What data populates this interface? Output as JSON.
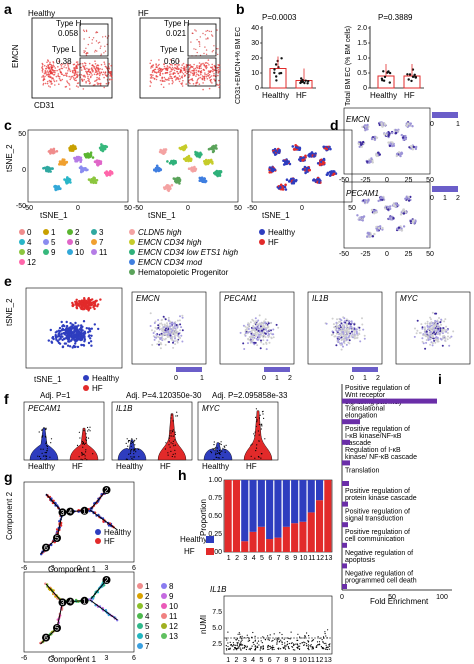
{
  "panels": {
    "a": {
      "label": "a",
      "plots": [
        {
          "title": "Healthy",
          "gates": [
            "Type H",
            "0.058",
            "Type L",
            "0.38"
          ]
        },
        {
          "title": "HF",
          "gates": [
            "Type H",
            "0.021",
            "Type L",
            "0.60"
          ]
        }
      ],
      "ylabel": "EMCN",
      "xlabel": "CD31"
    },
    "b": {
      "label": "b",
      "left": {
        "pval": "P=0.0003",
        "ylabel": "CD31+EMCN+% BM EC",
        "yticks": [
          "0",
          "10",
          "20",
          "30",
          "40"
        ],
        "categories": [
          "Healthy",
          "HF"
        ],
        "values": [
          13,
          5
        ]
      },
      "right": {
        "pval": "P=0.3889",
        "ylabel": "Total BM EC (% BM cells)",
        "yticks": [
          "0",
          "0.5",
          "1.0",
          "1.5",
          "2.0"
        ],
        "categories": [
          "Healthy",
          "HF"
        ],
        "values": [
          0.4,
          0.4
        ]
      }
    },
    "c": {
      "label": "c",
      "ylabel": "tSNE_2",
      "xlabel": "tSNE_1",
      "xticks": [
        "-50",
        "0",
        "50"
      ],
      "yticks": [
        "50",
        "0",
        "-50"
      ],
      "clusters": [
        "0",
        "1",
        "2",
        "3",
        "4",
        "5",
        "6",
        "7",
        "8",
        "9",
        "10",
        "11",
        "12"
      ],
      "cluster_colors": [
        "#f08c8c",
        "#c8a000",
        "#5bb531",
        "#2fa8a0",
        "#29b6c8",
        "#8a8cf0",
        "#e066c8",
        "#f0a030",
        "#8cc63f",
        "#37b87c",
        "#33a8d8",
        "#b57ce6",
        "#ff66aa"
      ],
      "celltypes": [
        "CLDN5 high",
        "EMCN CD34 high",
        "EMCN CD34 low ETS1 high",
        "EMCN CD34 mod",
        "Hematopoietic Progenitor"
      ],
      "celltype_colors": [
        "#f4a3a3",
        "#c6cc2a",
        "#2fb17a",
        "#3f7ee0",
        "#5aa35a"
      ],
      "groups": [
        "Healthy",
        "HF"
      ],
      "group_colors": [
        "#2e3dbf",
        "#e22a2a"
      ]
    },
    "d": {
      "label": "d",
      "plots": [
        "EMCN",
        "PECAM1"
      ],
      "scales": [
        [
          "0",
          "1"
        ],
        [
          "0",
          "1",
          "2"
        ]
      ],
      "xticks": [
        "-50",
        "-25",
        "0",
        "25",
        "50"
      ]
    },
    "e": {
      "label": "e",
      "plots": [
        "EMCN",
        "PECAM1",
        "IL1B",
        "MYC"
      ],
      "scales": [
        [
          "0",
          "1"
        ],
        [
          "0",
          "1",
          "2"
        ],
        [
          "0",
          "1",
          "2"
        ]
      ],
      "ylabel": "tSNE_2",
      "xlabel": "tSNE_1",
      "legend": [
        "Healthy",
        "HF"
      ]
    },
    "f": {
      "label": "f",
      "stats": [
        "Adj. P=1",
        "Adj. P=4.120350e-30",
        "Adj. P=2.095858e-33"
      ],
      "genes": [
        "PECAM1",
        "IL1B",
        "MYC"
      ],
      "categories": [
        "Healthy",
        "HF"
      ]
    },
    "g": {
      "label": "g",
      "ylabel": "Component 2",
      "xlabel": "Component 1",
      "xticks": [
        "-6",
        "-3",
        "0",
        "3",
        "6"
      ],
      "legend": [
        "Healthy",
        "HF"
      ],
      "nodes": [
        "1",
        "2",
        "3",
        "4",
        "5",
        "6"
      ],
      "clusters": [
        "1",
        "2",
        "3",
        "4",
        "5",
        "6",
        "7",
        "8",
        "9",
        "10",
        "11",
        "12",
        "13"
      ],
      "cluster_colors": [
        "#f08c8c",
        "#d9a200",
        "#8cbf2a",
        "#4db84d",
        "#2fb88a",
        "#22b6c0",
        "#3aa0e0",
        "#8a7cf0",
        "#c46ae0",
        "#ea5ab8",
        "#f08080",
        "#a0b020",
        "#60c060"
      ]
    },
    "h": {
      "label": "h",
      "ylabel": "Proportion",
      "yticks": [
        "0.00",
        "0.25",
        "0.50",
        "0.75",
        "1.00"
      ],
      "legend": [
        "Healthy",
        "HF"
      ],
      "gene": "IL1B",
      "umi_ylabel": "nUMI",
      "umi_yticks": [
        "2.5",
        "5.0",
        "7.5"
      ]
    },
    "i": {
      "label": "i",
      "xlabel": "Fold Enrichment",
      "xticks": [
        "0",
        "50",
        "100"
      ],
      "terms": [
        "Positive regulation of Wnt receptor signalling pathway",
        "Translational elongation",
        "Positive regulation of I-κB kinase/NF-κB cascade",
        "Regulation of I-κB kinase/ NF-κB cascade",
        "Translation",
        "Positive regulation of protein kinase cascade",
        "Positive regulation of signal transduction",
        "Positive regulation of cell communication",
        "Negative regulation of apoptosis",
        "Negative regulation of programmed cell death"
      ]
    }
  },
  "chart_data": [
    {
      "type": "bar",
      "title": "",
      "categories": [
        "1",
        "2",
        "3",
        "4",
        "5",
        "6",
        "7",
        "8",
        "9",
        "10",
        "11",
        "12",
        "13"
      ],
      "series": [
        {
          "name": "Healthy",
          "values": [
            0.0,
            0.0,
            0.85,
            0.72,
            0.65,
            0.82,
            0.8,
            0.65,
            0.6,
            0.58,
            0.45,
            0.28,
            0.0
          ]
        },
        {
          "name": "HF",
          "values": [
            1.0,
            1.0,
            0.15,
            0.28,
            0.35,
            0.18,
            0.2,
            0.35,
            0.4,
            0.42,
            0.55,
            0.72,
            1.0
          ]
        }
      ],
      "ylabel": "Proportion",
      "ylim": [
        0,
        1
      ]
    },
    {
      "type": "bar",
      "title": "",
      "categories": [
        "Positive regulation of Wnt receptor signalling pathway",
        "Translational elongation",
        "Positive regulation of I-κB kinase/NF-κB cascade",
        "Regulation of I-κB kinase/ NF-κB cascade",
        "Translation",
        "Positive regulation of protein kinase cascade",
        "Positive regulation of signal transduction",
        "Positive regulation of cell communication",
        "Negative regulation of apoptosis",
        "Negative regulation of programmed cell death"
      ],
      "values": [
        95,
        18,
        8,
        8,
        7,
        6,
        6,
        5,
        5,
        5
      ],
      "xlabel": "Fold Enrichment",
      "xlim": [
        0,
        110
      ]
    }
  ]
}
